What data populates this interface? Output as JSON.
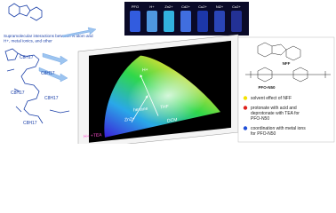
{
  "caption": "Supramolecular interactions between N atom and H+, metal ionics, and other",
  "chain_labels": [
    "C8H17",
    "C8H17",
    "C8H17",
    "C8H17",
    "C8H17"
  ],
  "vial_labels": [
    "PFO",
    "H+",
    "Zn2+",
    "Cd2+",
    "Cu2+",
    "Ni2+",
    "Co2+"
  ],
  "cie_labels": [
    {
      "text": "H+",
      "color": "#ffffff"
    },
    {
      "text": "Zn2+",
      "color": "#ffffff"
    },
    {
      "text": "THF",
      "color": "#ffffff"
    },
    {
      "text": "hexane",
      "color": "#ffffff"
    },
    {
      "text": "DCM",
      "color": "#ffffff"
    },
    {
      "text": "H+ +TEA",
      "color": "#ff4fd0"
    }
  ],
  "structures": [
    "NFF",
    "PFO-N50"
  ],
  "legend": [
    {
      "text": "solvent effect of NFF",
      "color": "#f4e200"
    },
    {
      "text": "protonate with acid and deprotonate with TEA for PFO-N50",
      "color": "#e0201b"
    },
    {
      "text": "coordination with metal ions for PFO-N50",
      "color": "#1f4fd8"
    }
  ]
}
